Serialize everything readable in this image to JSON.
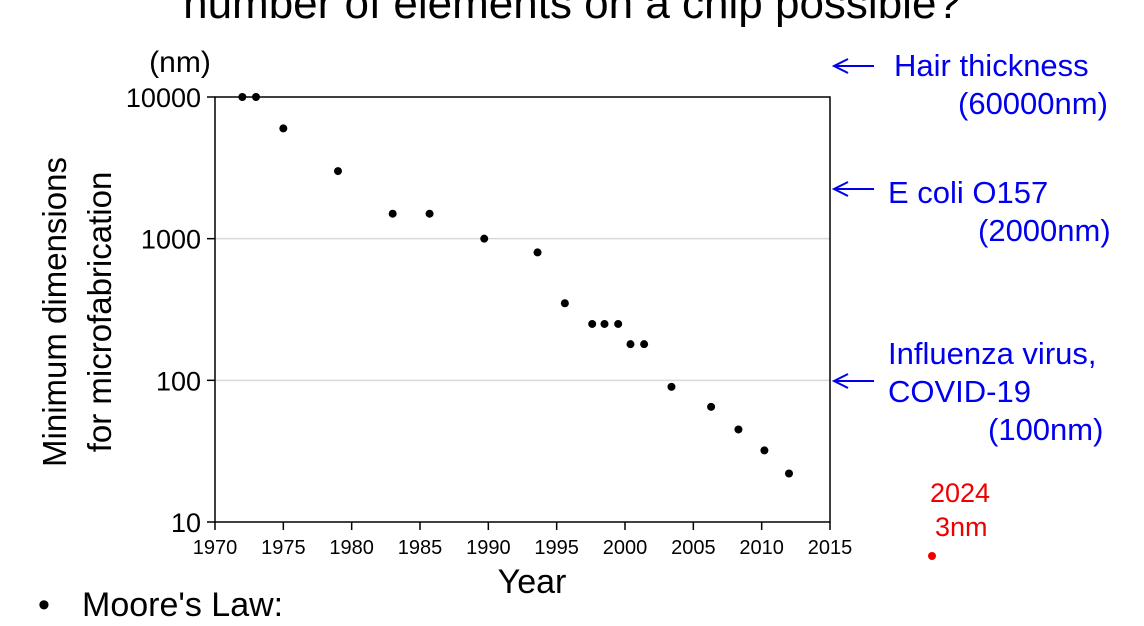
{
  "slide": {
    "title": "number of elements on a chip possible?",
    "bullet_text": "Moore's Law:"
  },
  "chart_data": {
    "type": "scatter",
    "title": "",
    "xlabel": "Year",
    "ylabel_line1": "Minimum dimensions",
    "ylabel_line2": "for microfabrication",
    "yunit": "(nm)",
    "yscale": "log",
    "xlim": [
      1970,
      2015
    ],
    "ylim": [
      10,
      10000
    ],
    "x_ticks": [
      1970,
      1975,
      1980,
      1985,
      1990,
      1995,
      2000,
      2005,
      2010,
      2015
    ],
    "y_ticks": [
      10,
      100,
      1000,
      10000
    ],
    "grid": "horizontal",
    "marker_color": "#000000",
    "points": [
      {
        "x": 1972,
        "y": 10000
      },
      {
        "x": 1973,
        "y": 10000
      },
      {
        "x": 1975,
        "y": 6000
      },
      {
        "x": 1979,
        "y": 3000
      },
      {
        "x": 1983,
        "y": 1500
      },
      {
        "x": 1985.7,
        "y": 1500
      },
      {
        "x": 1989.7,
        "y": 1000
      },
      {
        "x": 1993.6,
        "y": 800
      },
      {
        "x": 1995.6,
        "y": 350
      },
      {
        "x": 1997.6,
        "y": 250
      },
      {
        "x": 1998.5,
        "y": 250
      },
      {
        "x": 1999.5,
        "y": 250
      },
      {
        "x": 2000.4,
        "y": 180
      },
      {
        "x": 2001.4,
        "y": 180
      },
      {
        "x": 2003.4,
        "y": 90
      },
      {
        "x": 2006.3,
        "y": 65
      },
      {
        "x": 2008.3,
        "y": 45
      },
      {
        "x": 2010.2,
        "y": 32
      },
      {
        "x": 2012,
        "y": 22
      }
    ],
    "annotations": [
      {
        "line1": "Hair thickness",
        "line2": "(60000nm)",
        "color": "#0000ee"
      },
      {
        "line1": "E coli O157",
        "line2": "(2000nm)",
        "color": "#0000ee"
      },
      {
        "line1": "Influenza virus,",
        "line2": "COVID-19",
        "line3": "(100nm)",
        "color": "#0000ee"
      }
    ],
    "highlight": {
      "line1": "2024",
      "line2": "3nm",
      "color": "#ee0000"
    }
  }
}
